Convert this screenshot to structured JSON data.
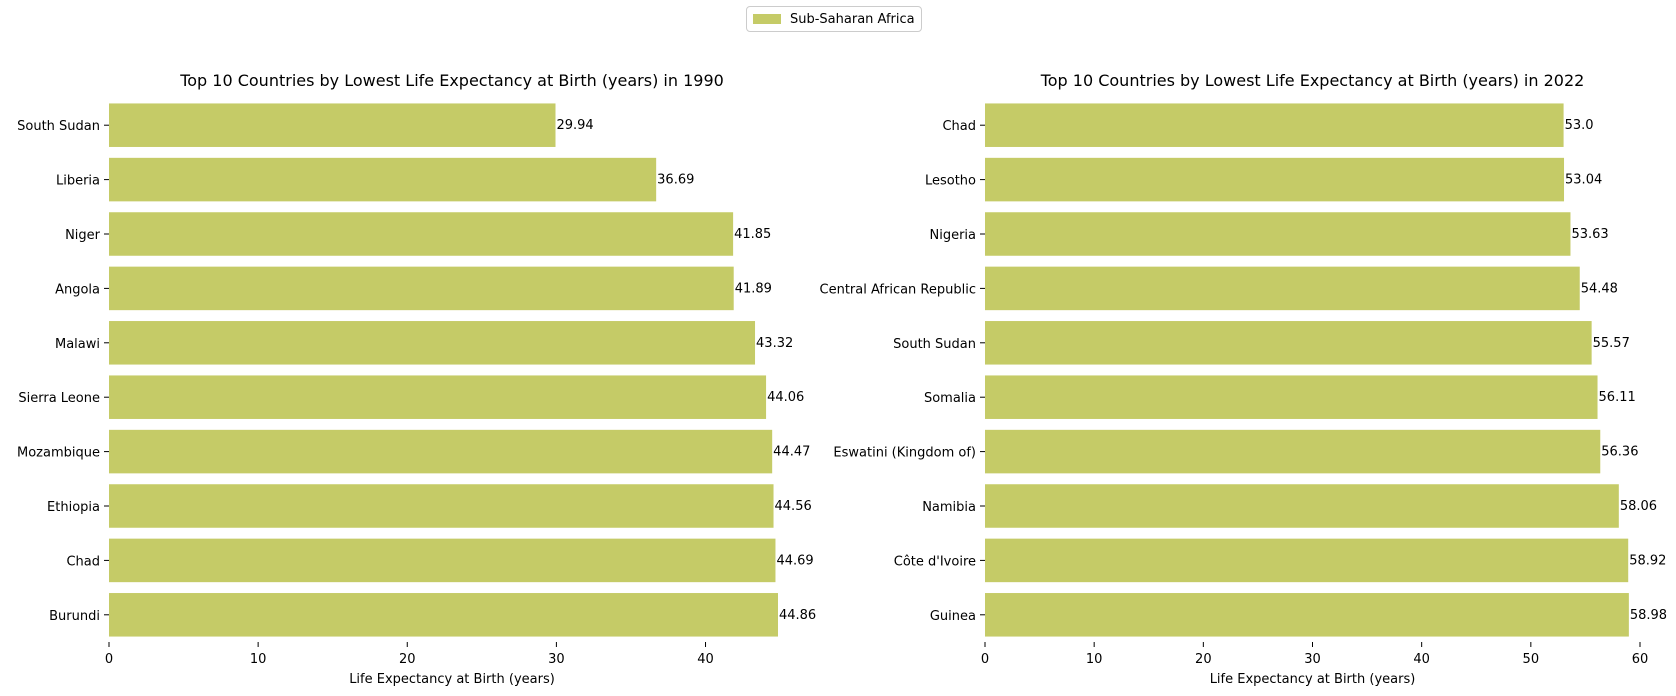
{
  "legend": {
    "label": "Sub-Saharan Africa",
    "color": "#c5cb67"
  },
  "chart_data": [
    {
      "type": "bar",
      "orientation": "horizontal",
      "title": "Top 10 Countries by Lowest Life Expectancy at Birth (years) in 1990",
      "xlabel": "Life Expectancy at Birth (years)",
      "ylabel": "",
      "xlim": [
        0,
        46
      ],
      "xticks": [
        0,
        10,
        20,
        30,
        40
      ],
      "categories": [
        "South Sudan",
        "Liberia",
        "Niger",
        "Angola",
        "Malawi",
        "Sierra Leone",
        "Mozambique",
        "Ethiopia",
        "Chad",
        "Burundi"
      ],
      "values": [
        29.94,
        36.69,
        41.85,
        41.89,
        43.32,
        44.06,
        44.47,
        44.56,
        44.69,
        44.86
      ],
      "value_labels": [
        "29.94",
        "36.69",
        "41.85",
        "41.89",
        "43.32",
        "44.06",
        "44.47",
        "44.56",
        "44.69",
        "44.86"
      ],
      "series_name": "Sub-Saharan Africa",
      "color": "#c5cb67",
      "grid": false
    },
    {
      "type": "bar",
      "orientation": "horizontal",
      "title": "Top 10 Countries by Lowest Life Expectancy at Birth (years) in 2022",
      "xlabel": "Life Expectancy at Birth (years)",
      "ylabel": "",
      "xlim": [
        0,
        60
      ],
      "xticks": [
        0,
        10,
        20,
        30,
        40,
        50,
        60
      ],
      "categories": [
        "Chad",
        "Lesotho",
        "Nigeria",
        "Central African Republic",
        "South Sudan",
        "Somalia",
        "Eswatini (Kingdom of)",
        "Namibia",
        "Côte d'Ivoire",
        "Guinea"
      ],
      "values": [
        53.0,
        53.04,
        53.63,
        54.48,
        55.57,
        56.11,
        56.36,
        58.06,
        58.92,
        58.98
      ],
      "value_labels": [
        "53.0",
        "53.04",
        "53.63",
        "54.48",
        "55.57",
        "56.11",
        "56.36",
        "58.06",
        "58.92",
        "58.98"
      ],
      "series_name": "Sub-Saharan Africa",
      "color": "#c5cb67",
      "grid": false
    }
  ]
}
